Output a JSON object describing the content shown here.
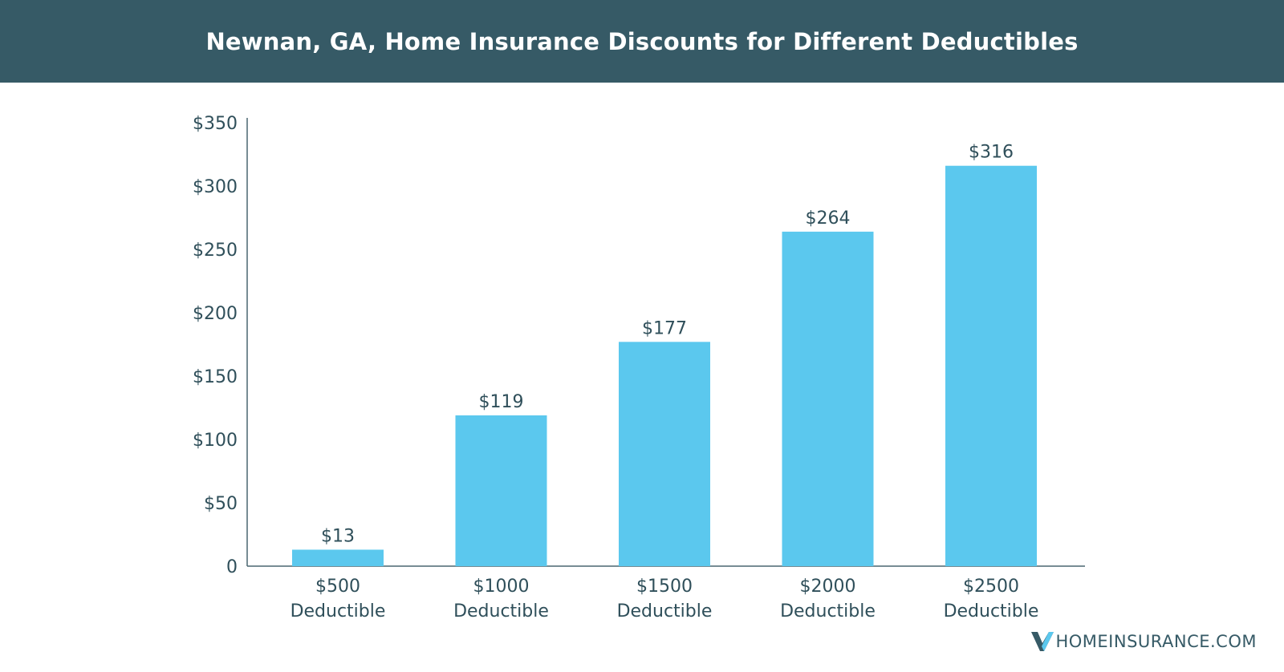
{
  "header": {
    "title": "Newnan, GA, Home Insurance Discounts for Different Deductibles"
  },
  "branding": {
    "logo_text": "HOMEINSURANCE.COM"
  },
  "colors": {
    "header_bg": "#365a66",
    "bar": "#5bc8ee",
    "text": "#2f4f5a"
  },
  "chart_data": {
    "type": "bar",
    "title": "Newnan, GA, Home Insurance Discounts for Different Deductibles",
    "categories": [
      [
        "$500",
        "Deductible"
      ],
      [
        "$1000",
        "Deductible"
      ],
      [
        "$1500",
        "Deductible"
      ],
      [
        "$2000",
        "Deductible"
      ],
      [
        "$2500",
        "Deductible"
      ]
    ],
    "values": [
      13,
      119,
      177,
      264,
      316
    ],
    "value_labels": [
      "$13",
      "$119",
      "$177",
      "$264",
      "$316"
    ],
    "ylim": [
      0,
      350
    ],
    "yticks": [
      0,
      50,
      100,
      150,
      200,
      250,
      300,
      350
    ],
    "ytick_labels": [
      "0",
      "$50",
      "$100",
      "$150",
      "$200",
      "$250",
      "$300",
      "$350"
    ],
    "grid": false,
    "xlabel": "",
    "ylabel": ""
  }
}
